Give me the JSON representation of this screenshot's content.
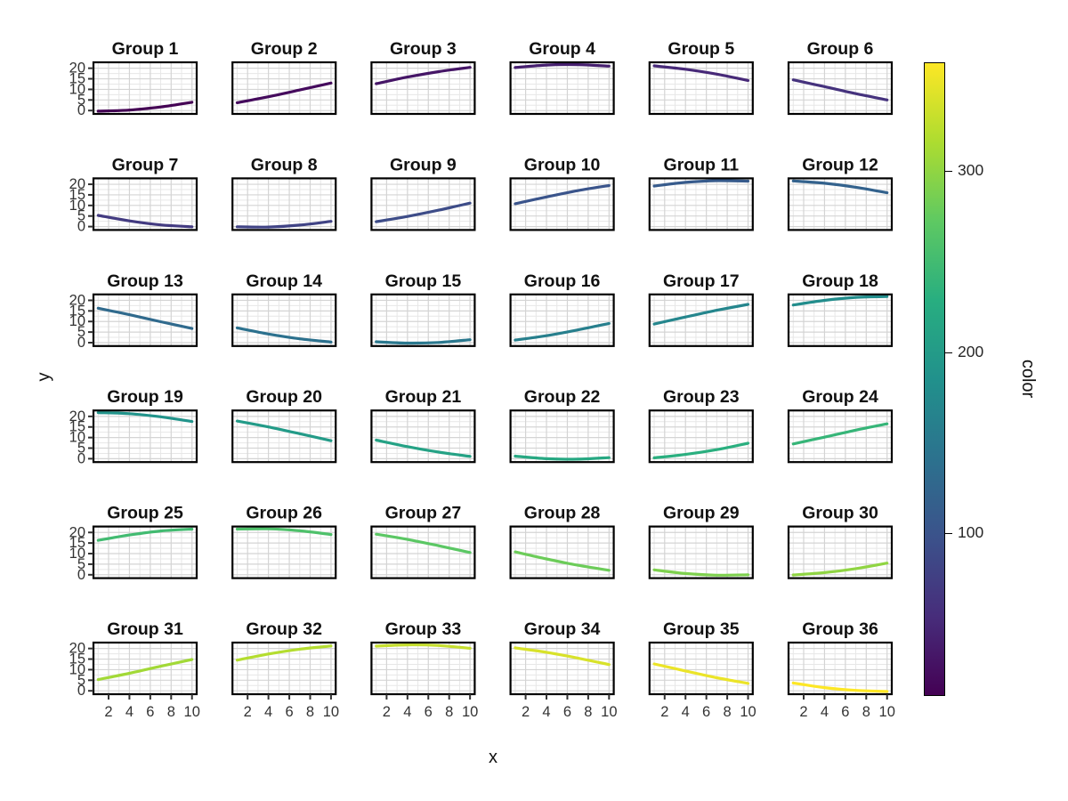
{
  "figure": {
    "background": "#ffffff",
    "panel_background": "#ffffff",
    "panel_border_color": "#000000",
    "grid_major_color": "#d4d4d4",
    "grid_minor_color": "#e7e7e7",
    "tick_color": "#333333",
    "tick_label_color": "#333333",
    "title_color": "#111111"
  },
  "chart_data": {
    "type": "line",
    "facet_layout": {
      "rows": 6,
      "cols": 6,
      "grid": true,
      "legend_position": "right-colorbar"
    },
    "xlabel": "x",
    "ylabel": "y",
    "x_ticks": [
      2,
      4,
      6,
      8,
      10
    ],
    "x_minor_ticks": [
      1,
      3,
      5,
      7,
      9
    ],
    "y_ticks": [
      20,
      15,
      10,
      5,
      0
    ],
    "y_minor_ticks": [
      2.5,
      7.5,
      12.5,
      17.5
    ],
    "xlim": [
      0.55,
      10.45
    ],
    "ylim": [
      -1.6,
      22.8
    ],
    "x": [
      1,
      4,
      7,
      10
    ],
    "series": [
      {
        "name": "Group 1",
        "color_value": 10,
        "y": [
          -0.3,
          0.2,
          1.7,
          3.9
        ]
      },
      {
        "name": "Group 2",
        "color_value": 20,
        "y": [
          3.7,
          6.5,
          9.7,
          13.0
        ]
      },
      {
        "name": "Group 3",
        "color_value": 30,
        "y": [
          12.7,
          15.8,
          18.4,
          20.4
        ]
      },
      {
        "name": "Group 4",
        "color_value": 40,
        "y": [
          20.3,
          21.5,
          21.7,
          21.0
        ]
      },
      {
        "name": "Group 5",
        "color_value": 50,
        "y": [
          21.1,
          19.5,
          17.2,
          14.2
        ]
      },
      {
        "name": "Group 6",
        "color_value": 60,
        "y": [
          14.5,
          11.3,
          8.0,
          5.0
        ]
      },
      {
        "name": "Group 7",
        "color_value": 70,
        "y": [
          5.3,
          2.7,
          0.8,
          -0.1
        ]
      },
      {
        "name": "Group 8",
        "color_value": 80,
        "y": [
          -0.1,
          -0.2,
          0.7,
          2.5
        ]
      },
      {
        "name": "Group 9",
        "color_value": 90,
        "y": [
          2.3,
          4.8,
          7.8,
          11.1
        ]
      },
      {
        "name": "Group 10",
        "color_value": 100,
        "y": [
          10.8,
          14.0,
          17.0,
          19.4
        ]
      },
      {
        "name": "Group 11",
        "color_value": 110,
        "y": [
          19.2,
          20.9,
          21.7,
          21.5
        ]
      },
      {
        "name": "Group 12",
        "color_value": 120,
        "y": [
          21.6,
          20.5,
          18.6,
          16.0
        ]
      },
      {
        "name": "Group 13",
        "color_value": 130,
        "y": [
          16.3,
          13.2,
          9.9,
          6.7
        ]
      },
      {
        "name": "Group 14",
        "color_value": 140,
        "y": [
          7.0,
          4.1,
          1.8,
          0.3
        ]
      },
      {
        "name": "Group 15",
        "color_value": 150,
        "y": [
          0.4,
          -0.2,
          0.1,
          1.4
        ]
      },
      {
        "name": "Group 16",
        "color_value": 160,
        "y": [
          1.2,
          3.3,
          6.0,
          9.1
        ]
      },
      {
        "name": "Group 17",
        "color_value": 170,
        "y": [
          8.8,
          12.1,
          15.3,
          18.1
        ]
      },
      {
        "name": "Group 18",
        "color_value": 180,
        "y": [
          17.8,
          20.0,
          21.4,
          21.8
        ]
      },
      {
        "name": "Group 19",
        "color_value": 190,
        "y": [
          21.8,
          21.3,
          19.8,
          17.6
        ]
      },
      {
        "name": "Group 20",
        "color_value": 200,
        "y": [
          17.8,
          15.0,
          11.8,
          8.5
        ]
      },
      {
        "name": "Group 21",
        "color_value": 210,
        "y": [
          8.8,
          5.7,
          3.1,
          1.1
        ]
      },
      {
        "name": "Group 22",
        "color_value": 220,
        "y": [
          1.2,
          0.0,
          -0.2,
          0.5
        ]
      },
      {
        "name": "Group 23",
        "color_value": 230,
        "y": [
          0.4,
          2.0,
          4.3,
          7.3
        ]
      },
      {
        "name": "Group 24",
        "color_value": 240,
        "y": [
          7.0,
          10.2,
          13.5,
          16.5
        ]
      },
      {
        "name": "Group 25",
        "color_value": 250,
        "y": [
          16.3,
          18.8,
          20.7,
          21.6
        ]
      },
      {
        "name": "Group 26",
        "color_value": 260,
        "y": [
          21.6,
          21.7,
          20.8,
          19.0
        ]
      },
      {
        "name": "Group 27",
        "color_value": 270,
        "y": [
          19.2,
          16.7,
          13.7,
          10.5
        ]
      },
      {
        "name": "Group 28",
        "color_value": 280,
        "y": [
          10.8,
          7.5,
          4.5,
          2.1
        ]
      },
      {
        "name": "Group 29",
        "color_value": 290,
        "y": [
          2.3,
          0.6,
          -0.2,
          0.0
        ]
      },
      {
        "name": "Group 30",
        "color_value": 300,
        "y": [
          -0.1,
          1.0,
          2.9,
          5.5
        ]
      },
      {
        "name": "Group 31",
        "color_value": 310,
        "y": [
          5.3,
          8.3,
          11.6,
          14.8
        ]
      },
      {
        "name": "Group 32",
        "color_value": 320,
        "y": [
          14.5,
          17.4,
          19.7,
          21.2
        ]
      },
      {
        "name": "Group 33",
        "color_value": 330,
        "y": [
          21.1,
          21.7,
          21.4,
          20.1
        ]
      },
      {
        "name": "Group 34",
        "color_value": 340,
        "y": [
          20.3,
          18.2,
          15.5,
          12.4
        ]
      },
      {
        "name": "Group 35",
        "color_value": 350,
        "y": [
          12.7,
          9.4,
          6.2,
          3.5
        ]
      },
      {
        "name": "Group 36",
        "color_value": 360,
        "y": [
          3.7,
          1.5,
          0.2,
          -0.3
        ]
      }
    ],
    "colorbar": {
      "label": "color",
      "ticks": [
        300,
        200,
        100
      ],
      "domain": [
        10,
        360
      ],
      "viridis_stops": [
        "#440154",
        "#472d7b",
        "#3b528b",
        "#2c728e",
        "#21918c",
        "#28ae80",
        "#5ec962",
        "#addc30",
        "#fde725"
      ]
    }
  }
}
